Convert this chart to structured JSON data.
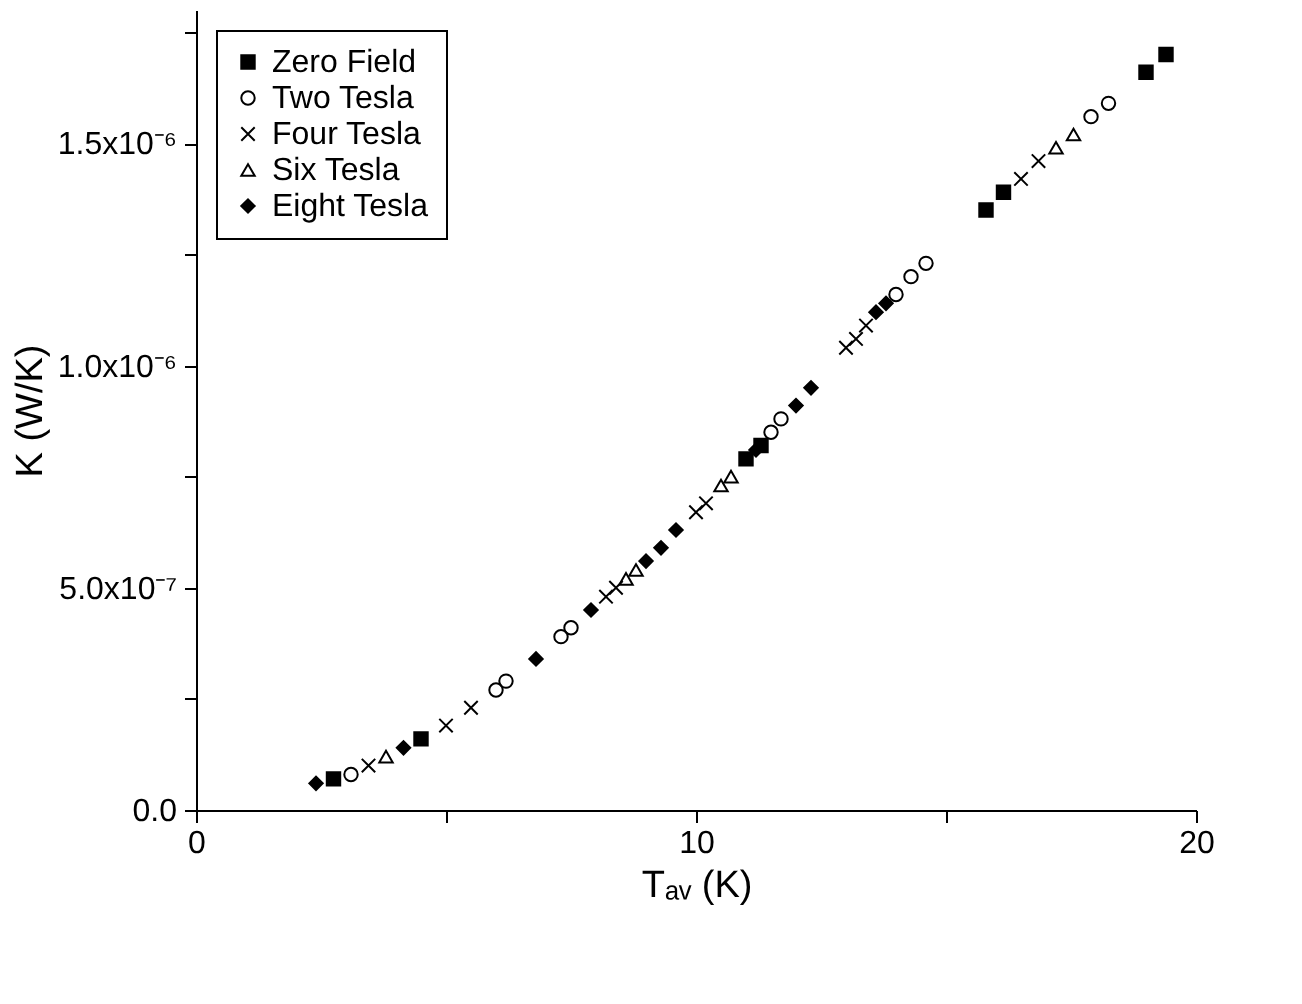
{
  "chart_data": {
    "type": "scatter",
    "xlabel": "Tₐᵥ (K)",
    "ylabel": "K (W/K)",
    "xlim": [
      0,
      20
    ],
    "ylim": [
      0,
      1.8e-06
    ],
    "xticks": [
      0,
      {
        "value": 5,
        "label": null
      },
      10,
      {
        "value": 15,
        "label": null
      },
      20
    ],
    "yticks": [
      {
        "value": 0,
        "label": "0.0"
      },
      {
        "value": 2.5e-07,
        "label": null
      },
      {
        "value": 5e-07,
        "label": "5.0x10⁻⁷"
      },
      {
        "value": 7.5e-07,
        "label": null
      },
      {
        "value": 1e-06,
        "label": "1.0x10⁻⁶"
      },
      {
        "value": 1.25e-06,
        "label": null
      },
      {
        "value": 1.5e-06,
        "label": "1.5x10⁻⁶"
      },
      {
        "value": 1.75e-06,
        "label": null
      }
    ],
    "grid": false,
    "legend": "top left",
    "series": [
      {
        "name": "Zero Field",
        "color": "#000000",
        "marker": "square",
        "x": [
          2.75,
          4.5,
          11.0,
          11.3,
          15.8,
          16.15,
          19.0,
          19.4
        ],
        "values": [
          7e-08,
          1.6e-07,
          7.9e-07,
          8.2e-07,
          1.35e-06,
          1.39e-06,
          1.66e-06,
          1.7e-06
        ]
      },
      {
        "name": "Two Tesla",
        "color": "#000000",
        "marker": "circle",
        "x": [
          3.1,
          6.0,
          6.2,
          7.3,
          7.5,
          11.5,
          11.7,
          14.0,
          14.3,
          14.6,
          17.9,
          18.25
        ],
        "values": [
          8e-08,
          2.7e-07,
          2.9e-07,
          3.9e-07,
          4.1e-07,
          8.5e-07,
          8.8e-07,
          1.16e-06,
          1.2e-06,
          1.23e-06,
          1.56e-06,
          1.59e-06
        ]
      },
      {
        "name": "Four Tesla",
        "color": "#000000",
        "marker": "cross",
        "x": [
          3.45,
          5.0,
          5.5,
          8.2,
          8.4,
          10.0,
          10.2,
          13.0,
          13.2,
          13.4,
          16.5,
          16.85
        ],
        "values": [
          1e-07,
          1.9e-07,
          2.3e-07,
          4.8e-07,
          5e-07,
          6.7e-07,
          6.9e-07,
          1.04e-06,
          1.06e-06,
          1.09e-06,
          1.42e-06,
          1.46e-06
        ]
      },
      {
        "name": "Six Tesla",
        "color": "#000000",
        "marker": "triangle",
        "x": [
          3.8,
          8.6,
          8.8,
          10.5,
          10.7,
          17.2,
          17.55
        ],
        "values": [
          1.2e-07,
          5.2e-07,
          5.4e-07,
          7.3e-07,
          7.5e-07,
          1.49e-06,
          1.52e-06
        ]
      },
      {
        "name": "Eight Tesla",
        "color": "#000000",
        "marker": "diamond",
        "x": [
          2.4,
          4.15,
          6.8,
          7.9,
          9.0,
          9.3,
          9.6,
          11.2,
          12.0,
          12.3,
          13.6,
          13.8
        ],
        "values": [
          6e-08,
          1.4e-07,
          3.4e-07,
          4.5e-07,
          5.6e-07,
          5.9e-07,
          6.3e-07,
          8.1e-07,
          9.1e-07,
          9.5e-07,
          1.12e-06,
          1.14e-06
        ]
      }
    ]
  }
}
